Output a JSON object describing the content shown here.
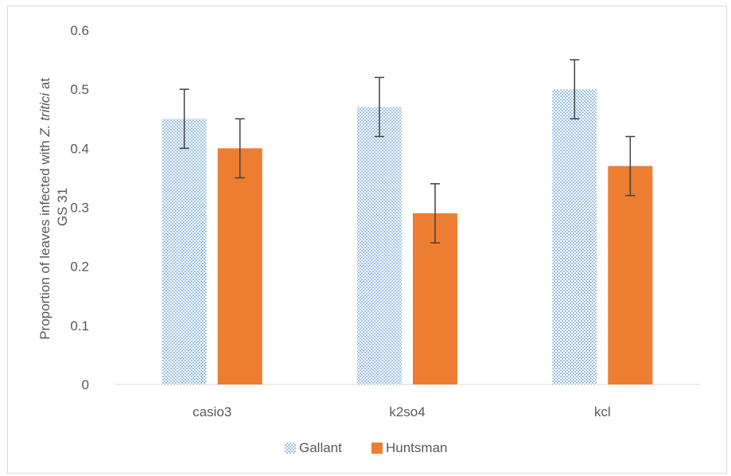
{
  "chart_data": {
    "type": "bar",
    "categories": [
      "casio3",
      "k2so4",
      "kcl"
    ],
    "series": [
      {
        "name": "Gallant",
        "values": [
          0.45,
          0.47,
          0.5
        ],
        "errors": [
          0.05,
          0.05,
          0.05
        ],
        "color": "#9dc3e6",
        "pattern": "dotted"
      },
      {
        "name": "Huntsman",
        "values": [
          0.4,
          0.29,
          0.37
        ],
        "errors": [
          0.05,
          0.05,
          0.05
        ],
        "color": "#ed7d31",
        "pattern": "solid"
      }
    ],
    "ylabel_parts": [
      "Proportion of leaves  infected with ",
      "Z. tritici",
      "  at",
      "GS 31"
    ],
    "xlabel": "",
    "ylim": [
      0,
      0.6
    ],
    "yticks": [
      "0",
      "0.1",
      "0.2",
      "0.3",
      "0.4",
      "0.5",
      "0.6"
    ],
    "legend_position": "bottom",
    "grid": false,
    "error_bar_color": "#404040"
  }
}
